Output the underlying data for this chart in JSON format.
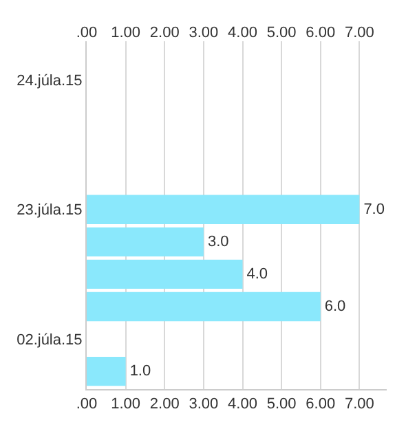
{
  "chart_data": {
    "type": "bar",
    "orientation": "horizontal",
    "categories": [
      "24.júla.15",
      null,
      null,
      null,
      "23.júla.15",
      null,
      null,
      null,
      "02.júla.15",
      null
    ],
    "values": [
      null,
      null,
      null,
      null,
      7,
      3,
      4,
      6,
      null,
      1
    ],
    "value_labels": [
      null,
      null,
      null,
      null,
      "7.0",
      "3.0",
      "4.0",
      "6.0",
      null,
      "1.0"
    ],
    "color": "#8ae8fc",
    "xlim": [
      0,
      7.7
    ],
    "xticks": [
      {
        "value": 0,
        "label": ".00"
      },
      {
        "value": 1,
        "label": "1.00"
      },
      {
        "value": 2,
        "label": "2.00"
      },
      {
        "value": 3,
        "label": "3.00"
      },
      {
        "value": 4,
        "label": "4.00"
      },
      {
        "value": 5,
        "label": "5.00"
      },
      {
        "value": 6,
        "label": "6.00"
      },
      {
        "value": 7,
        "label": "7.00"
      }
    ],
    "x2lim": [
      0,
      7.7
    ],
    "x2ticks": [
      {
        "value": 0,
        "label": ".00"
      },
      {
        "value": 1,
        "label": "1.00"
      },
      {
        "value": 2,
        "label": "2.00"
      },
      {
        "value": 3,
        "label": "3.00"
      },
      {
        "value": 4,
        "label": "4.00"
      },
      {
        "value": 5,
        "label": "5.00"
      },
      {
        "value": 6,
        "label": "6.00"
      },
      {
        "value": 7,
        "label": "7.00"
      }
    ],
    "grid": "x",
    "legend": false
  }
}
